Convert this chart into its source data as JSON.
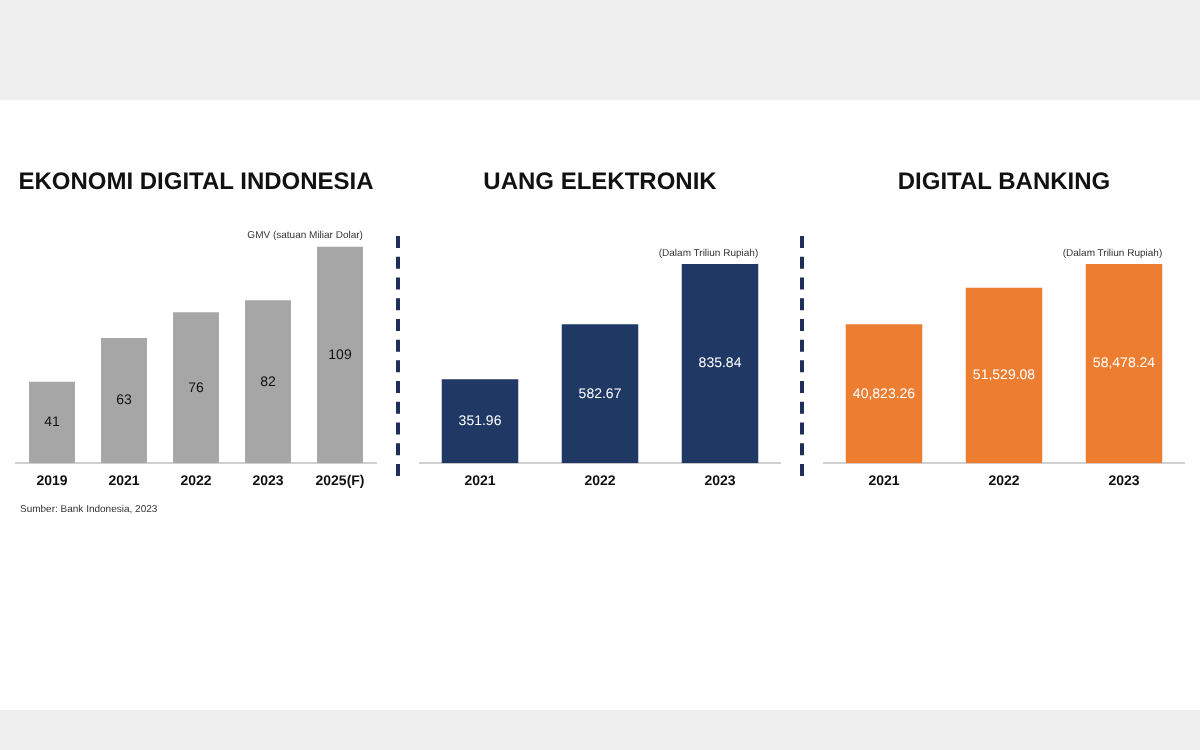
{
  "chart_data": [
    {
      "type": "bar",
      "title": "EKONOMI DIGITAL INDONESIA",
      "categories": [
        "2019",
        "2021",
        "2022",
        "2023",
        "2025(F)"
      ],
      "values": [
        41,
        63,
        76,
        82,
        109
      ],
      "color": "#a6a6a6",
      "data_labels": true,
      "grid": false,
      "legend": false,
      "annotations": [
        "GMV (satuan Miliar Dolar)",
        "Sumber: Bank Indonesia, 2023"
      ]
    },
    {
      "type": "bar",
      "title": "UANG ELEKTRONIK",
      "categories": [
        "2021",
        "2022",
        "2023"
      ],
      "values": [
        351.96,
        582.67,
        835.84
      ],
      "color": "#203864",
      "data_labels": true,
      "grid": false,
      "legend": false,
      "annotations": [
        "(Dalam Triliun Rupiah)"
      ]
    },
    {
      "type": "bar",
      "title": "DIGITAL BANKING",
      "categories": [
        "2021",
        "2022",
        "2023"
      ],
      "values": [
        40823.26,
        51529.08,
        58478.24
      ],
      "value_labels": [
        "40,823.26",
        "51,529.08",
        "58,478.24"
      ],
      "color": "#ed7d31",
      "grid": false,
      "legend": false,
      "annotations": [
        "(Dalam Triliun Rupiah)"
      ]
    }
  ]
}
